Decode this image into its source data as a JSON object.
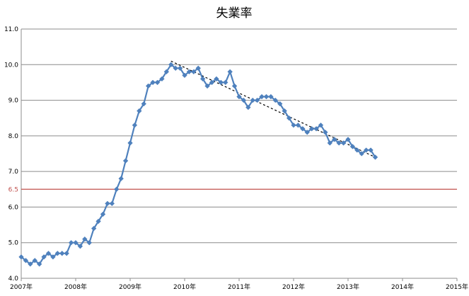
{
  "chart_data": {
    "type": "line",
    "title": "失業率",
    "xlabel": "",
    "ylabel": "",
    "x_ticks": [
      "2007年",
      "2008年",
      "2009年",
      "2010年",
      "2011年",
      "2012年",
      "2013年",
      "2014年",
      "2015年"
    ],
    "x_range": [
      2007,
      2015
    ],
    "y_ticks": [
      "4.0",
      "5.0",
      "6.0",
      "6.5",
      "7.0",
      "8.0",
      "9.0",
      "10.0",
      "11.0"
    ],
    "ylim": [
      4.0,
      11.0
    ],
    "grid": "horizontal",
    "legend": "none",
    "series": [
      {
        "color": "#4f81bd",
        "marker": "diamond",
        "x": [
          "2007-01",
          "2007-02",
          "2007-03",
          "2007-04",
          "2007-05",
          "2007-06",
          "2007-07",
          "2007-08",
          "2007-09",
          "2007-10",
          "2007-11",
          "2007-12",
          "2008-01",
          "2008-02",
          "2008-03",
          "2008-04",
          "2008-05",
          "2008-06",
          "2008-07",
          "2008-08",
          "2008-09",
          "2008-10",
          "2008-11",
          "2008-12",
          "2009-01",
          "2009-02",
          "2009-03",
          "2009-04",
          "2009-05",
          "2009-06",
          "2009-07",
          "2009-08",
          "2009-09",
          "2009-10",
          "2009-11",
          "2009-12",
          "2010-01",
          "2010-02",
          "2010-03",
          "2010-04",
          "2010-05",
          "2010-06",
          "2010-07",
          "2010-08",
          "2010-09",
          "2010-10",
          "2010-11",
          "2010-12",
          "2011-01",
          "2011-02",
          "2011-03",
          "2011-04",
          "2011-05",
          "2011-06",
          "2011-07",
          "2011-08",
          "2011-09",
          "2011-10",
          "2011-11",
          "2011-12",
          "2012-01",
          "2012-02",
          "2012-03",
          "2012-04",
          "2012-05",
          "2012-06",
          "2012-07",
          "2012-08",
          "2012-09",
          "2012-10",
          "2012-11",
          "2012-12",
          "2013-01",
          "2013-02",
          "2013-03",
          "2013-04",
          "2013-05",
          "2013-06",
          "2013-07"
        ],
        "values": [
          4.6,
          4.5,
          4.4,
          4.5,
          4.4,
          4.6,
          4.7,
          4.6,
          4.7,
          4.7,
          4.7,
          5.0,
          5.0,
          4.9,
          5.1,
          5.0,
          5.4,
          5.6,
          5.8,
          6.1,
          6.1,
          6.5,
          6.8,
          7.3,
          7.8,
          8.3,
          8.7,
          8.9,
          9.4,
          9.5,
          9.5,
          9.6,
          9.8,
          10.0,
          9.9,
          9.9,
          9.7,
          9.8,
          9.8,
          9.9,
          9.6,
          9.4,
          9.5,
          9.6,
          9.5,
          9.5,
          9.8,
          9.4,
          9.1,
          9.0,
          8.8,
          9.0,
          9.0,
          9.1,
          9.1,
          9.1,
          9.0,
          8.9,
          8.7,
          8.5,
          8.3,
          8.3,
          8.2,
          8.1,
          8.2,
          8.2,
          8.3,
          8.1,
          7.8,
          7.9,
          7.8,
          7.8,
          7.9,
          7.7,
          7.6,
          7.5,
          7.6,
          7.6,
          7.4
        ]
      }
    ],
    "trendline": {
      "style": "dashed",
      "color": "#000000",
      "x": [
        "2009-10",
        "2013-07"
      ],
      "values": [
        10.1,
        7.4
      ]
    },
    "reference_line": {
      "value": 6.5,
      "label": "6.5",
      "color": "#c0504d"
    }
  }
}
